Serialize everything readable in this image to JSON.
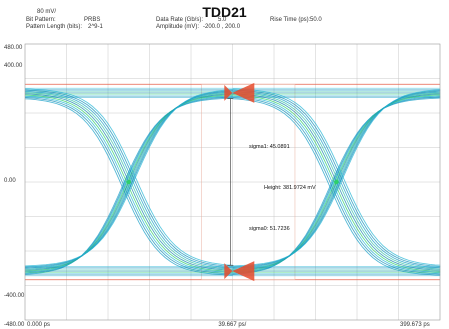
{
  "header": {
    "scale_label": "80 mV/",
    "title": "TDD21",
    "bit_pattern_label": "Bit Pattern:",
    "bit_pattern_value": "PRBS",
    "pattern_length_label": "Pattern Length (bits):",
    "pattern_length_value": "2^9-1",
    "data_rate_label": "Data Rate (Gb/s):",
    "data_rate_value": "5.0",
    "amplitude_label": "Amplitude (mV):",
    "amplitude_value": "-200.0 , 200.0",
    "rise_time_label": "Rise Time (ps):",
    "rise_time_value": "50.0"
  },
  "chart_data": {
    "type": "eye-diagram",
    "title": "TDD21",
    "xlim": [
      0,
      399.673
    ],
    "ylim": [
      -480,
      480
    ],
    "y_ticks": [
      {
        "value": 480,
        "label": "480.00"
      },
      {
        "value": 400,
        "label": "400.00"
      },
      {
        "value": 0,
        "label": "0.00"
      },
      {
        "value": -400,
        "label": "-400.00"
      },
      {
        "value": -480,
        "label": "-480.00"
      }
    ],
    "x_ticks": [
      {
        "value": 0,
        "label": "0.000 ps"
      },
      {
        "value": 199.667,
        "label": "39.667 ps/"
      },
      {
        "value": 399.673,
        "label": "399.673 ps"
      }
    ],
    "high_level_mv": 310,
    "low_level_mv": -310,
    "crossing_times_ps": [
      100,
      300
    ],
    "grid": true,
    "colors": {
      "trace": "#1aa0c8",
      "trace_hot": "#2ecf6a",
      "marker": "#e84a2a",
      "level_line": "#e8604a",
      "grid": "#c8c8c8"
    },
    "annotations": {
      "sigma1": "sigma1: 45.0891",
      "height": "Height: 381.9724 mV",
      "sigma0": "sigma0: 51.7236"
    }
  }
}
